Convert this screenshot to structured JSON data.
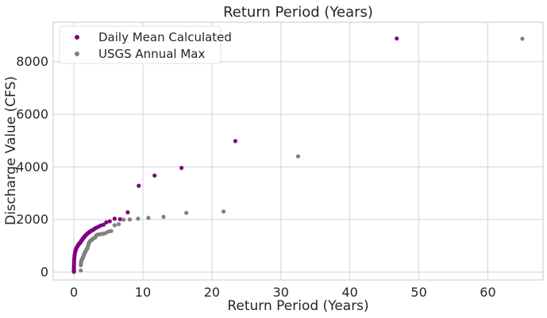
{
  "chart_data": {
    "type": "scatter",
    "title": "Return Period (Years)",
    "xlabel": "Return Period (Years)",
    "ylabel": "Discharge Value (CFS)",
    "xlim": [
      -3,
      68
    ],
    "ylim": [
      -300,
      9500
    ],
    "xticks": [
      0,
      10,
      20,
      30,
      40,
      50,
      60
    ],
    "yticks": [
      0,
      2000,
      4000,
      6000,
      8000
    ],
    "grid": true,
    "legend_position": "top-left",
    "series": [
      {
        "name": "Daily Mean Calculated",
        "color": "#800080",
        "points": [
          [
            46.8,
            8880
          ],
          [
            23.4,
            4980
          ],
          [
            15.6,
            3960
          ],
          [
            11.7,
            3670
          ],
          [
            9.4,
            3280
          ],
          [
            7.8,
            2270
          ],
          [
            6.7,
            2010
          ],
          [
            5.9,
            2030
          ],
          [
            5.2,
            1930
          ],
          [
            4.7,
            1890
          ],
          [
            4.3,
            1800
          ],
          [
            3.9,
            1770
          ],
          [
            3.6,
            1730
          ],
          [
            3.3,
            1690
          ],
          [
            3.1,
            1660
          ],
          [
            2.9,
            1630
          ],
          [
            2.75,
            1600
          ],
          [
            2.6,
            1580
          ],
          [
            2.46,
            1560
          ],
          [
            2.34,
            1540
          ],
          [
            2.23,
            1520
          ],
          [
            2.13,
            1500
          ],
          [
            2.04,
            1480
          ],
          [
            1.95,
            1460
          ],
          [
            1.87,
            1440
          ],
          [
            1.8,
            1420
          ],
          [
            1.73,
            1400
          ],
          [
            1.67,
            1390
          ],
          [
            1.61,
            1370
          ],
          [
            1.56,
            1350
          ],
          [
            1.51,
            1340
          ],
          [
            1.46,
            1320
          ],
          [
            1.42,
            1310
          ],
          [
            1.37,
            1290
          ],
          [
            1.33,
            1280
          ],
          [
            1.3,
            1270
          ],
          [
            1.26,
            1250
          ],
          [
            1.23,
            1240
          ],
          [
            1.2,
            1230
          ],
          [
            1.17,
            1220
          ],
          [
            1.14,
            1210
          ],
          [
            1.11,
            1200
          ],
          [
            1.09,
            1190
          ],
          [
            1.06,
            1180
          ],
          [
            1.04,
            1170
          ],
          [
            1.02,
            1160
          ],
          [
            1.0,
            1150
          ],
          [
            0.92,
            1120
          ],
          [
            0.85,
            1100
          ],
          [
            0.78,
            1080
          ],
          [
            0.72,
            1060
          ],
          [
            0.66,
            1040
          ],
          [
            0.6,
            1020
          ],
          [
            0.55,
            990
          ],
          [
            0.5,
            970
          ],
          [
            0.45,
            950
          ],
          [
            0.4,
            930
          ],
          [
            0.35,
            900
          ],
          [
            0.3,
            870
          ],
          [
            0.26,
            840
          ],
          [
            0.22,
            800
          ],
          [
            0.18,
            760
          ],
          [
            0.14,
            700
          ],
          [
            0.1,
            640
          ],
          [
            0.07,
            560
          ],
          [
            0.05,
            480
          ],
          [
            0.03,
            400
          ],
          [
            0.02,
            320
          ],
          [
            0.01,
            240
          ],
          [
            0.005,
            170
          ],
          [
            0.003,
            120
          ],
          [
            0.002,
            80
          ],
          [
            0.001,
            40
          ],
          [
            0.001,
            10
          ]
        ]
      },
      {
        "name": "USGS Annual Max",
        "color": "#808080",
        "points": [
          [
            65.0,
            8870
          ],
          [
            32.5,
            4400
          ],
          [
            21.7,
            2300
          ],
          [
            16.3,
            2250
          ],
          [
            13.0,
            2100
          ],
          [
            10.8,
            2060
          ],
          [
            9.3,
            2030
          ],
          [
            8.1,
            2000
          ],
          [
            7.2,
            1990
          ],
          [
            6.5,
            1820
          ],
          [
            5.9,
            1780
          ],
          [
            5.4,
            1560
          ],
          [
            5.0,
            1540
          ],
          [
            4.6,
            1480
          ],
          [
            4.3,
            1460
          ],
          [
            4.1,
            1450
          ],
          [
            3.8,
            1440
          ],
          [
            3.6,
            1430
          ],
          [
            3.4,
            1420
          ],
          [
            3.25,
            1390
          ],
          [
            3.1,
            1320
          ],
          [
            2.95,
            1300
          ],
          [
            2.83,
            1280
          ],
          [
            2.71,
            1250
          ],
          [
            2.6,
            1230
          ],
          [
            2.5,
            1210
          ],
          [
            2.41,
            1190
          ],
          [
            2.32,
            1170
          ],
          [
            2.24,
            1140
          ],
          [
            2.17,
            1100
          ],
          [
            2.1,
            1040
          ],
          [
            2.03,
            970
          ],
          [
            1.97,
            920
          ],
          [
            1.91,
            880
          ],
          [
            1.86,
            860
          ],
          [
            1.81,
            840
          ],
          [
            1.76,
            820
          ],
          [
            1.71,
            800
          ],
          [
            1.67,
            780
          ],
          [
            1.63,
            760
          ],
          [
            1.59,
            740
          ],
          [
            1.55,
            720
          ],
          [
            1.51,
            700
          ],
          [
            1.48,
            660
          ],
          [
            1.44,
            640
          ],
          [
            1.41,
            620
          ],
          [
            1.38,
            600
          ],
          [
            1.35,
            580
          ],
          [
            1.32,
            560
          ],
          [
            1.3,
            540
          ],
          [
            1.25,
            520
          ],
          [
            1.2,
            500
          ],
          [
            1.16,
            480
          ],
          [
            1.12,
            450
          ],
          [
            1.08,
            420
          ],
          [
            1.05,
            390
          ],
          [
            1.03,
            360
          ],
          [
            1.02,
            320
          ],
          [
            1.01,
            260
          ],
          [
            1.0,
            60
          ]
        ]
      }
    ]
  }
}
